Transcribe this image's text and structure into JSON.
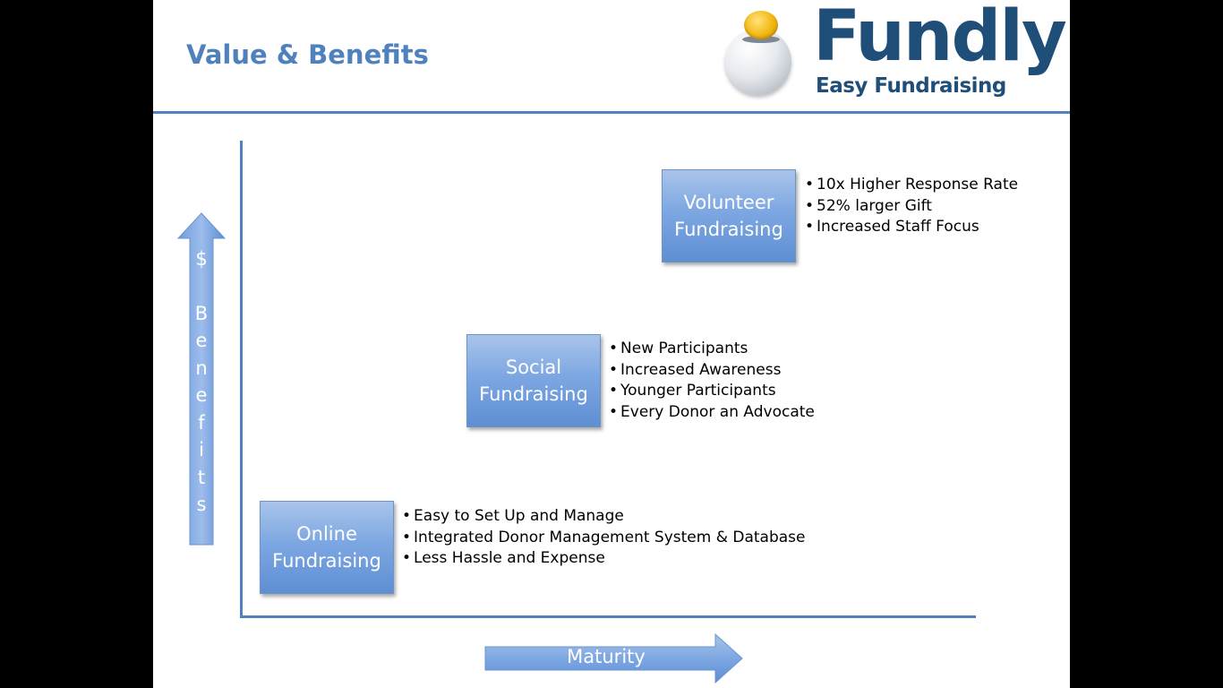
{
  "slide": {
    "title": "Value & Benefits"
  },
  "logo": {
    "name": "Fundly",
    "tagline": "Easy Fundraising",
    "icon": "piggy-bank-coin-icon"
  },
  "axes": {
    "y_label_symbol": "$",
    "y_label_letters": [
      "B",
      "e",
      "n",
      "e",
      "f",
      "i",
      "t",
      "s"
    ],
    "x_label": "Maturity"
  },
  "stages": [
    {
      "line1": "Online",
      "line2": "Fundraising",
      "benefits": [
        "Easy to Set Up and Manage",
        "Integrated Donor Management System & Database",
        "Less Hassle and Expense"
      ]
    },
    {
      "line1": "Social",
      "line2": "Fundraising",
      "benefits": [
        "New Participants",
        "Increased Awareness",
        "Younger Participants",
        "Every Donor an Advocate"
      ]
    },
    {
      "line1": "Volunteer",
      "line2": "Fundraising",
      "benefits": [
        "10x Higher Response Rate",
        "52% larger Gift",
        "Increased Staff Focus"
      ]
    }
  ],
  "colors": {
    "accent": "#4f81bd",
    "box_fill": "#7da7e2",
    "logo": "#1f4e79",
    "background": "#000000"
  }
}
